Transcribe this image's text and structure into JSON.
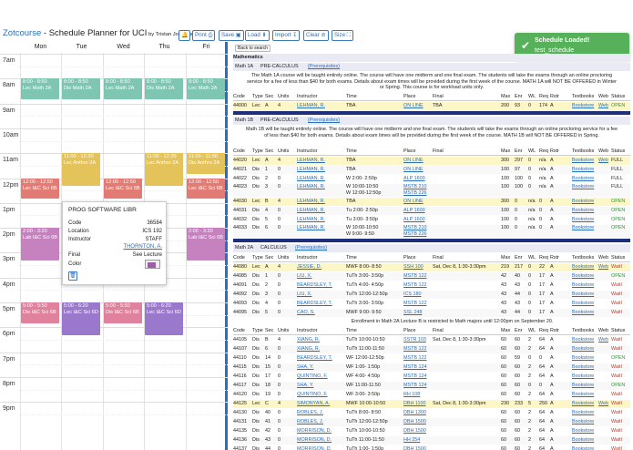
{
  "header": {
    "brand": "Zotcourse",
    "title_rest": " - Schedule Planner for UCI",
    "byline": " by Tristan Jogminas",
    "buttons": [
      "Print",
      "Save",
      "Load",
      "Import",
      "Clear",
      "Size"
    ]
  },
  "toast": {
    "title": "Schedule Loaded!",
    "message": "test_schedule"
  },
  "calendar": {
    "days": [
      "Mon",
      "Tue",
      "Wed",
      "Thu",
      "Fri"
    ],
    "times": [
      "7am",
      "8am",
      "9am",
      "10am",
      "11am",
      "12pm",
      "1pm",
      "2pm",
      "3pm",
      "4pm",
      "5pm",
      "6pm",
      "7pm",
      "8pm",
      "9pm"
    ],
    "events": [
      {
        "day": 0,
        "time": "8:00 - 8:50",
        "label": "Lec Math 2A",
        "color": "#7fc6b2",
        "start": 8.0,
        "end": 8.83
      },
      {
        "day": 1,
        "time": "8:00 - 8:50",
        "label": "Dis Math 2A",
        "color": "#7fc6b2",
        "start": 8.0,
        "end": 8.83
      },
      {
        "day": 2,
        "time": "8:00 - 8:50",
        "label": "Lec Math 2A",
        "color": "#7fc6b2",
        "start": 8.0,
        "end": 8.83
      },
      {
        "day": 3,
        "time": "8:00 - 8:50",
        "label": "Dis Math 2A",
        "color": "#7fc6b2",
        "start": 8.0,
        "end": 8.83
      },
      {
        "day": 4,
        "time": "8:00 - 8:50",
        "label": "Lec Math 2A",
        "color": "#7fc6b2",
        "start": 8.0,
        "end": 8.83
      },
      {
        "day": 1,
        "time": "11:00 - 12:20",
        "label": "Lec Anthro 2A",
        "color": "#e3c35a",
        "start": 11.0,
        "end": 12.33
      },
      {
        "day": 3,
        "time": "11:00 - 12:20",
        "label": "Lec Anthro 2A",
        "color": "#e3c35a",
        "start": 11.0,
        "end": 12.33
      },
      {
        "day": 4,
        "time": "11:00 - 11:50",
        "label": "Dis Anthro 2A",
        "color": "#e3c35a",
        "start": 11.0,
        "end": 11.83
      },
      {
        "day": 0,
        "time": "12:00 - 12:50",
        "label": "Lec I&C Sci 6B",
        "color": "#e27b73",
        "start": 12.0,
        "end": 12.83
      },
      {
        "day": 2,
        "time": "12:00 - 12:50",
        "label": "Lec I&C Sci 6B",
        "color": "#e27b73",
        "start": 12.0,
        "end": 12.83
      },
      {
        "day": 4,
        "time": "12:00 - 12:50",
        "label": "Lec I&C Sci 6B",
        "color": "#e27b73",
        "start": 12.0,
        "end": 12.83
      },
      {
        "day": 0,
        "time": "2:00 - 3:20",
        "label": "Lab I&C Sci 6B",
        "color": "#c582bf",
        "start": 14.0,
        "end": 15.33
      },
      {
        "day": 4,
        "time": "2:00 - 3:20",
        "label": "Lab I&C Sci 6B",
        "color": "#c582bf",
        "start": 14.0,
        "end": 15.33
      },
      {
        "day": 0,
        "time": "5:00 - 5:50",
        "label": "Dis I&C Sci 6B",
        "color": "#e0819e",
        "start": 17.0,
        "end": 17.83
      },
      {
        "day": 1,
        "time": "5:00 - 6:20",
        "label": "Lec I&C Sci 6D",
        "color": "#9a78cc",
        "start": 17.0,
        "end": 18.33
      },
      {
        "day": 2,
        "time": "5:00 - 5:50",
        "label": "Dis I&C Sci 6B",
        "color": "#e0819e",
        "start": 17.0,
        "end": 17.83
      },
      {
        "day": 3,
        "time": "5:00 - 6:20",
        "label": "Lec I&C Sci 6D",
        "color": "#9a78cc",
        "start": 17.0,
        "end": 18.33
      }
    ]
  },
  "popup": {
    "title": "PROG SOFTWARE LIBR",
    "rows": [
      {
        "k": "Code",
        "v": "36584"
      },
      {
        "k": "Location",
        "v": "ICS 192"
      },
      {
        "k": "Instructor",
        "v": "STAFF"
      },
      {
        "k": "",
        "v": "THORNTON, A."
      },
      {
        "k": "Final",
        "v": "See Lecture"
      },
      {
        "k": "Color",
        "v": ""
      }
    ],
    "color": "#9b5fa5"
  },
  "results": {
    "back_label": "Back to search",
    "dept": "Mathematics",
    "headers": [
      "Code",
      "Type",
      "Sec",
      "Units",
      "Instructor",
      "Time",
      "Place",
      "Final",
      "Max",
      "Enr",
      "WL",
      "Req",
      "Rstr",
      "Textbooks",
      "Web",
      "Status"
    ],
    "courses": [
      {
        "num": "Math  1A",
        "title": "PRE-CALCULUS",
        "prereq": "(Prerequisites)",
        "comment": "The Math 1A course will be taught entirely online. The course will have one midterm and one final exam. The students will take the exams through an online proctoring service for a fee of less than $40 for both exams. Details about exam times will be provided during the first week of the course. MATH 1A will NOT BE OFFERED in Winter or Spring. This course is for workload units only.",
        "rows": [
          [
            "44000",
            "Lec",
            "A",
            "4",
            "LEHMAN, R.",
            "TBA",
            "ON LINE",
            "TBA",
            "200",
            "93",
            "0",
            "174",
            "A",
            "Bookstore",
            "Web",
            "OPEN"
          ]
        ]
      },
      {
        "num": "Math  1B",
        "title": "PRE-CALCULUS",
        "prereq": "(Prerequisites)",
        "comment": "Math 1B will be taught entirely online. The course will have one midterm and one final exam. The students will take the exams through an online proctoring service for a fee of less than $40 for both exams. Details about exam times will be provided during the first week of the course. MATH 1B will NOT BE OFFERED in Spring.",
        "rows": [
          [
            "44020",
            "Lec",
            "A",
            "4",
            "LEHMAN, R.",
            "TBA",
            "ON LINE",
            "",
            "300",
            "297",
            "0",
            "n/a",
            "A",
            "Bookstore",
            "Web",
            "FULL"
          ],
          [
            "44021",
            "Dis",
            "1",
            "0",
            "LEHMAN, R.",
            "TBA",
            "ON LINE",
            "",
            "100",
            "97",
            "0",
            "n/a",
            "A",
            "Bookstore",
            "",
            "FULL"
          ],
          [
            "44022",
            "Dis",
            "2",
            "0",
            "LEHMAN, R.",
            "W  2:00- 2:50p",
            "ALP 1600",
            "",
            "100",
            "100",
            "0",
            "n/a",
            "A",
            "Bookstore",
            "",
            "FULL"
          ],
          [
            "44023",
            "Dis",
            "3",
            "0",
            "LEHMAN, R.",
            "W  10:00-10:50 / W  12:00-12:50p",
            "MSTB 210 / MSTB 226",
            "",
            "100",
            "100",
            "0",
            "n/a",
            "A",
            "Bookstore",
            "",
            "FULL"
          ],
          [
            "44030",
            "Lec",
            "B",
            "4",
            "LEHMAN, R.",
            "TBA",
            "ON LINE",
            "",
            "300",
            "0",
            "n/a",
            "0",
            "A",
            "Bookstore",
            "",
            "OPEN"
          ],
          [
            "44031",
            "Dis",
            "4",
            "0",
            "LEHMAN, R.",
            "Tu  2:00- 2:50p",
            "ALP 1600",
            "",
            "100",
            "0",
            "n/a",
            "0",
            "A",
            "Bookstore",
            "",
            "OPEN"
          ],
          [
            "44032",
            "Dis",
            "5",
            "0",
            "LEHMAN, R.",
            "Tu  3:00- 3:50p",
            "ALP 1600",
            "",
            "100",
            "0",
            "n/a",
            "0",
            "A",
            "Bookstore",
            "",
            "OPEN"
          ],
          [
            "44033",
            "Dis",
            "6",
            "0",
            "LEHMAN, R.",
            "W  10:00-10:50 / W  9:00- 9:50",
            "MSTB 210 / MSTB 226",
            "",
            "100",
            "0",
            "n/a",
            "0",
            "A",
            "Bookstore",
            "",
            "OPEN"
          ]
        ]
      },
      {
        "num": "Math  2A",
        "title": "CALCULUS",
        "prereq": "(Prerequisites)",
        "rows": [
          [
            "44080",
            "Lec",
            "A",
            "4",
            "JESSIE, D.",
            "MWF  8:00- 8:50",
            "SSH 100",
            "Sat, Dec 8, 1:30-3:30pm",
            "219",
            "217",
            "0",
            "22",
            "A",
            "Bookstore",
            "Web",
            "Waitl"
          ],
          [
            "44085",
            "Dis",
            "1",
            "0",
            "LIU, X.",
            "TuTh  3:00- 3:50p",
            "MSTB 122",
            "",
            "42",
            "40",
            "0",
            "17",
            "A",
            "Bookstore",
            "",
            "OPEN"
          ],
          [
            "44091",
            "Dis",
            "2",
            "0",
            "BEARDSLEY, T.",
            "TuTh  4:00- 4:50p",
            "MSTB 122",
            "",
            "43",
            "43",
            "0",
            "17",
            "A",
            "Bookstore",
            "",
            "Waitl"
          ],
          [
            "44092",
            "Dis",
            "3",
            "0",
            "LIU, X.",
            "TuTh  12:00-12:50p",
            "ICS 180",
            "",
            "43",
            "44",
            "0",
            "17",
            "A",
            "Bookstore",
            "",
            "Waitl"
          ],
          [
            "44093",
            "Dis",
            "4",
            "0",
            "BEARDSLEY, T.",
            "TuTh  3:00- 3:50p",
            "MSTB 122",
            "",
            "43",
            "43",
            "0",
            "17",
            "A",
            "Bookstore",
            "",
            "Waitl"
          ],
          [
            "44095",
            "Dis",
            "5",
            "0",
            "CAO, S.",
            "MWF  9:00- 9:50",
            "SSL 248",
            "",
            "43",
            "44",
            "0",
            "17",
            "A",
            "Bookstore",
            "",
            "Waitl"
          ]
        ],
        "note": "Enrollment in Math 2A Lecture B is restricted to Math majors until 12:00pm on September 20.",
        "rows2": [
          [
            "44105",
            "Dis",
            "B",
            "4",
            "XIANG, R.",
            "TuTh  10:00-10:50",
            "SSTR 103",
            "Sat, Dec 8, 1:30-3:30pm",
            "60",
            "60",
            "2",
            "64",
            "A",
            "Bookstore",
            "Web",
            "Waitl"
          ],
          [
            "44107",
            "Dis",
            "6",
            "0",
            "XIANG, R.",
            "TuTh  11:00-11:50",
            "MSTB 122",
            "",
            "60",
            "60",
            "2",
            "64",
            "A",
            "Bookstore",
            "",
            "Waitl"
          ],
          [
            "44110",
            "Dis",
            "14",
            "0",
            "BEARDSLEY, T.",
            "WF  12:00-12:50p",
            "MSTB 122",
            "",
            "60",
            "59",
            "0",
            "0",
            "A",
            "Bookstore",
            "",
            "OPEN"
          ],
          [
            "44115",
            "Dis",
            "15",
            "0",
            "SHA, Y.",
            "WF  1:00- 1:50p",
            "MSTB 124",
            "",
            "60",
            "60",
            "2",
            "64",
            "A",
            "Bookstore",
            "",
            "Waitl"
          ],
          [
            "44116",
            "Dis",
            "17",
            "0",
            "QUINTINO, F.",
            "WF  4:00- 4:50p",
            "MSTB 124",
            "",
            "60",
            "60",
            "2",
            "64",
            "A",
            "Bookstore",
            "",
            "Waitl"
          ],
          [
            "44117",
            "Dis",
            "18",
            "0",
            "SHA, Y.",
            "WF  11:00-11:50",
            "MSTB 124",
            "",
            "60",
            "60",
            "0",
            "0",
            "A",
            "Bookstore",
            "",
            "OPEN"
          ],
          [
            "44120",
            "Dis",
            "19",
            "0",
            "QUINTINO, F.",
            "WF  3:00- 3:50p",
            "RH 108",
            "",
            "60",
            "60",
            "2",
            "64",
            "A",
            "Bookstore",
            "",
            "Waitl"
          ],
          [
            "44125",
            "Lec",
            "C",
            "4",
            "SIMONYAN, A.",
            "MWF  10:00-10:50",
            "DBH 1100",
            "Sat, Dec 8, 1:30-3:30pm",
            "230",
            "233",
            "5",
            "250",
            "A",
            "Bookstore",
            "Web",
            "Waitl"
          ],
          [
            "44130",
            "Dis",
            "40",
            "0",
            "ROBLES, J.",
            "TuTh  8:00- 8:50",
            "DBH 1300",
            "",
            "60",
            "60",
            "2",
            "64",
            "A",
            "Bookstore",
            "",
            "Waitl"
          ],
          [
            "44131",
            "Dis",
            "41",
            "0",
            "ROBLES, J.",
            "TuTh  12:00-12:50p",
            "DBH 1500",
            "",
            "60",
            "60",
            "2",
            "64",
            "A",
            "Bookstore",
            "",
            "Waitl"
          ],
          [
            "44135",
            "Dis",
            "42",
            "0",
            "MORRISON, D.",
            "TuTh  10:00-10:50",
            "DBH 1500",
            "",
            "60",
            "60",
            "2",
            "64",
            "A",
            "Bookstore",
            "",
            "Waitl"
          ],
          [
            "44136",
            "Dis",
            "43",
            "0",
            "MORRISON, D.",
            "TuTh  11:00-11:50",
            "HH 254",
            "",
            "60",
            "60",
            "2",
            "64",
            "A",
            "Bookstore",
            "",
            "Waitl"
          ],
          [
            "44137",
            "Dis",
            "44",
            "0",
            "MORRISON, D.",
            "TuTh  1:00- 1:50p",
            "DBH 1500",
            "",
            "60",
            "60",
            "2",
            "64",
            "A",
            "Bookstore",
            "",
            "Waitl"
          ]
        ]
      }
    ]
  }
}
